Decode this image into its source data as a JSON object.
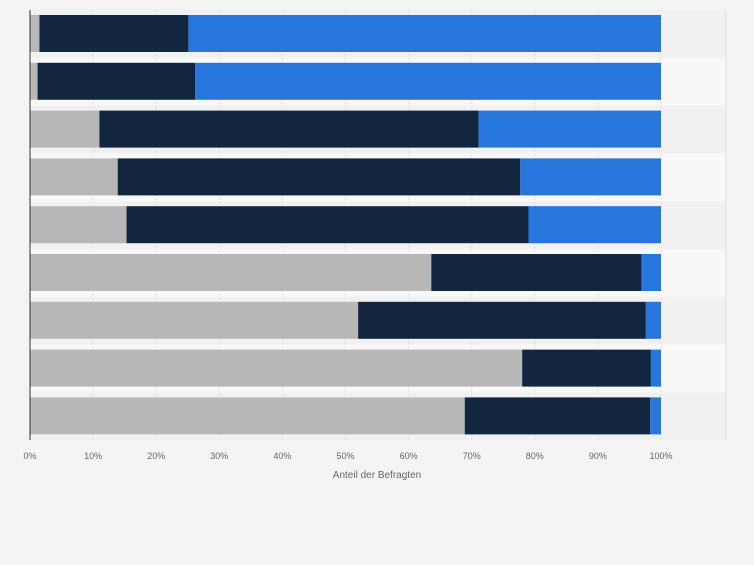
{
  "chart_data": {
    "type": "bar",
    "orientation": "horizontal",
    "stacked": true,
    "xlabel": "Anteil der Befragten",
    "ylabel": "",
    "xlim": [
      0,
      100
    ],
    "xticks": [
      "0%",
      "10%",
      "20%",
      "30%",
      "40%",
      "50%",
      "60%",
      "70%",
      "80%",
      "90%",
      "100%"
    ],
    "categories": [
      "",
      "",
      "",
      "",
      "",
      "",
      "",
      "",
      ""
    ],
    "series": [
      {
        "color": "#b7b7b7",
        "values": [
          1.5,
          1.2,
          11,
          13.9,
          15.3,
          63.6,
          52,
          78,
          68.9
        ]
      },
      {
        "color": "#12263f",
        "values": [
          23.6,
          25,
          60.1,
          63.8,
          63.7,
          33.3,
          45.6,
          20.4,
          29.4
        ]
      },
      {
        "color": "#2676dd",
        "values": [
          74.9,
          73.8,
          28.9,
          22.3,
          21.0,
          3.1,
          2.4,
          1.6,
          1.7
        ]
      }
    ],
    "grid": true,
    "legend": "none"
  }
}
